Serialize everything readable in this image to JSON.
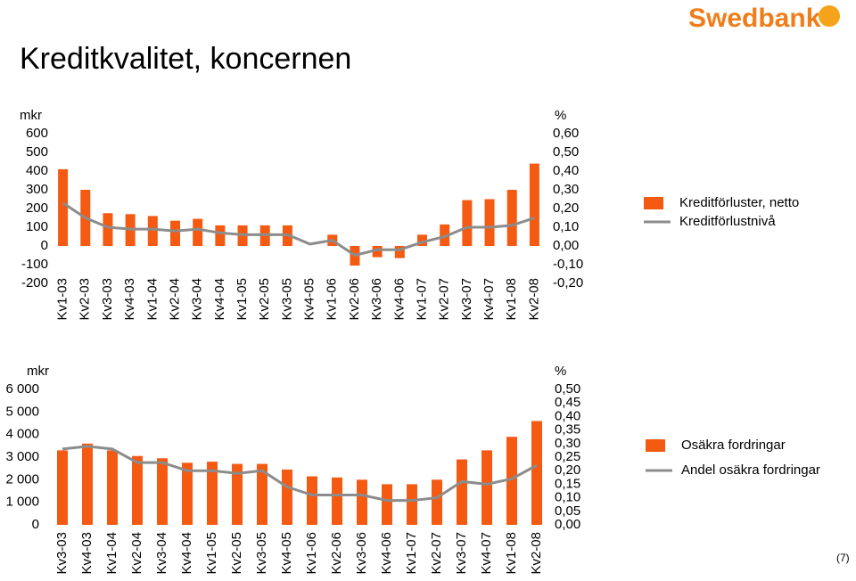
{
  "title": "Kreditkvalitet, koncernen",
  "logo": "Swedbank",
  "page_number": "(7)",
  "chart_data": [
    {
      "type": "bar-line",
      "y_label": "mkr",
      "y2_label": "%",
      "categories": [
        "Kv1-03",
        "Kv2-03",
        "Kv3-03",
        "Kv4-03",
        "Kv1-04",
        "Kv2-04",
        "Kv3-04",
        "Kv4-04",
        "Kv1-05",
        "Kv2-05",
        "Kv3-05",
        "Kv4-05",
        "Kv1-06",
        "Kv2-06",
        "Kv3-06",
        "Kv4-06",
        "Kv1-07",
        "Kv2-07",
        "Kv3-07",
        "Kv4-07",
        "Kv1-08",
        "Kv2-08"
      ],
      "series": [
        {
          "name": "Kreditförluster, netto",
          "color": "#f45a12",
          "type": "bar",
          "values": [
            410,
            300,
            175,
            170,
            160,
            135,
            145,
            110,
            110,
            110,
            110,
            0,
            60,
            -105,
            -60,
            -65,
            60,
            115,
            245,
            250,
            300,
            440
          ]
        },
        {
          "name": "Kreditförlustnivå",
          "color": "#8c8c8c",
          "type": "line",
          "axis": "y2",
          "values": [
            0.23,
            0.15,
            0.1,
            0.09,
            0.09,
            0.08,
            0.09,
            0.07,
            0.06,
            0.06,
            0.06,
            0.01,
            0.03,
            -0.05,
            -0.02,
            -0.02,
            0.02,
            0.05,
            0.1,
            0.1,
            0.11,
            0.15
          ]
        }
      ],
      "ylim": [
        -200,
        600
      ],
      "yticks": [
        600,
        500,
        400,
        300,
        200,
        100,
        0,
        -100,
        -200
      ],
      "y2lim": [
        -0.2,
        0.6
      ],
      "y2ticks": [
        {
          "value": 0.6,
          "label": "0,60"
        },
        {
          "value": 0.5,
          "label": "0,50"
        },
        {
          "value": 0.4,
          "label": "0,40"
        },
        {
          "value": 0.3,
          "label": "0,30"
        },
        {
          "value": 0.2,
          "label": "0,20"
        },
        {
          "value": 0.1,
          "label": "0,10"
        },
        {
          "value": 0,
          "label": "0,00"
        },
        {
          "value": -0.1,
          "label": "-0,10"
        },
        {
          "value": -0.2,
          "label": "-0,20"
        }
      ]
    },
    {
      "type": "bar-line",
      "y_label": "mkr",
      "y2_label": "%",
      "categories": [
        "Kv3-03",
        "Kv4-03",
        "Kv1-04",
        "Kv2-04",
        "Kv3-04",
        "Kv4-04",
        "Kv1-05",
        "Kv2-05",
        "Kv3-05",
        "Kv4-05",
        "Kv1-06",
        "Kv2-06",
        "Kv3-06",
        "Kv4-06",
        "Kv1-07",
        "Kv2-07",
        "Kv3-07",
        "Kv4-07",
        "Kv1-08",
        "Kv2-08"
      ],
      "series": [
        {
          "name": "Osäkra fordringar",
          "color": "#f45a12",
          "type": "bar",
          "values": [
            3300,
            3600,
            3300,
            3050,
            2950,
            2750,
            2800,
            2700,
            2700,
            2450,
            2150,
            2100,
            2000,
            1800,
            1800,
            2000,
            2900,
            3300,
            3900,
            4600
          ]
        },
        {
          "name": "Andel osäkra fordringar",
          "color": "#8c8c8c",
          "type": "line",
          "axis": "y2",
          "values": [
            0.28,
            0.29,
            0.28,
            0.23,
            0.23,
            0.2,
            0.2,
            0.19,
            0.2,
            0.14,
            0.11,
            0.11,
            0.11,
            0.09,
            0.09,
            0.1,
            0.16,
            0.15,
            0.17,
            0.22
          ]
        }
      ],
      "ylim": [
        0,
        6000
      ],
      "yticks": [
        {
          "value": 6000,
          "label": "6 000"
        },
        {
          "value": 5000,
          "label": "5 000"
        },
        {
          "value": 4000,
          "label": "4 000"
        },
        {
          "value": 3000,
          "label": "3 000"
        },
        {
          "value": 2000,
          "label": "2 000"
        },
        {
          "value": 1000,
          "label": "1 000"
        },
        0
      ],
      "y2lim": [
        0,
        0.5
      ],
      "y2ticks": [
        {
          "value": 0.5,
          "label": "0,50"
        },
        {
          "value": 0.45,
          "label": "0,45"
        },
        {
          "value": 0.4,
          "label": "0,40"
        },
        {
          "value": 0.35,
          "label": "0,35"
        },
        {
          "value": 0.3,
          "label": "0,30"
        },
        {
          "value": 0.25,
          "label": "0,25"
        },
        {
          "value": 0.2,
          "label": "0,20"
        },
        {
          "value": 0.15,
          "label": "0,15"
        },
        {
          "value": 0.1,
          "label": "0,10"
        },
        {
          "value": 0.05,
          "label": "0,05"
        },
        {
          "value": 0,
          "label": "0,00"
        }
      ]
    }
  ]
}
